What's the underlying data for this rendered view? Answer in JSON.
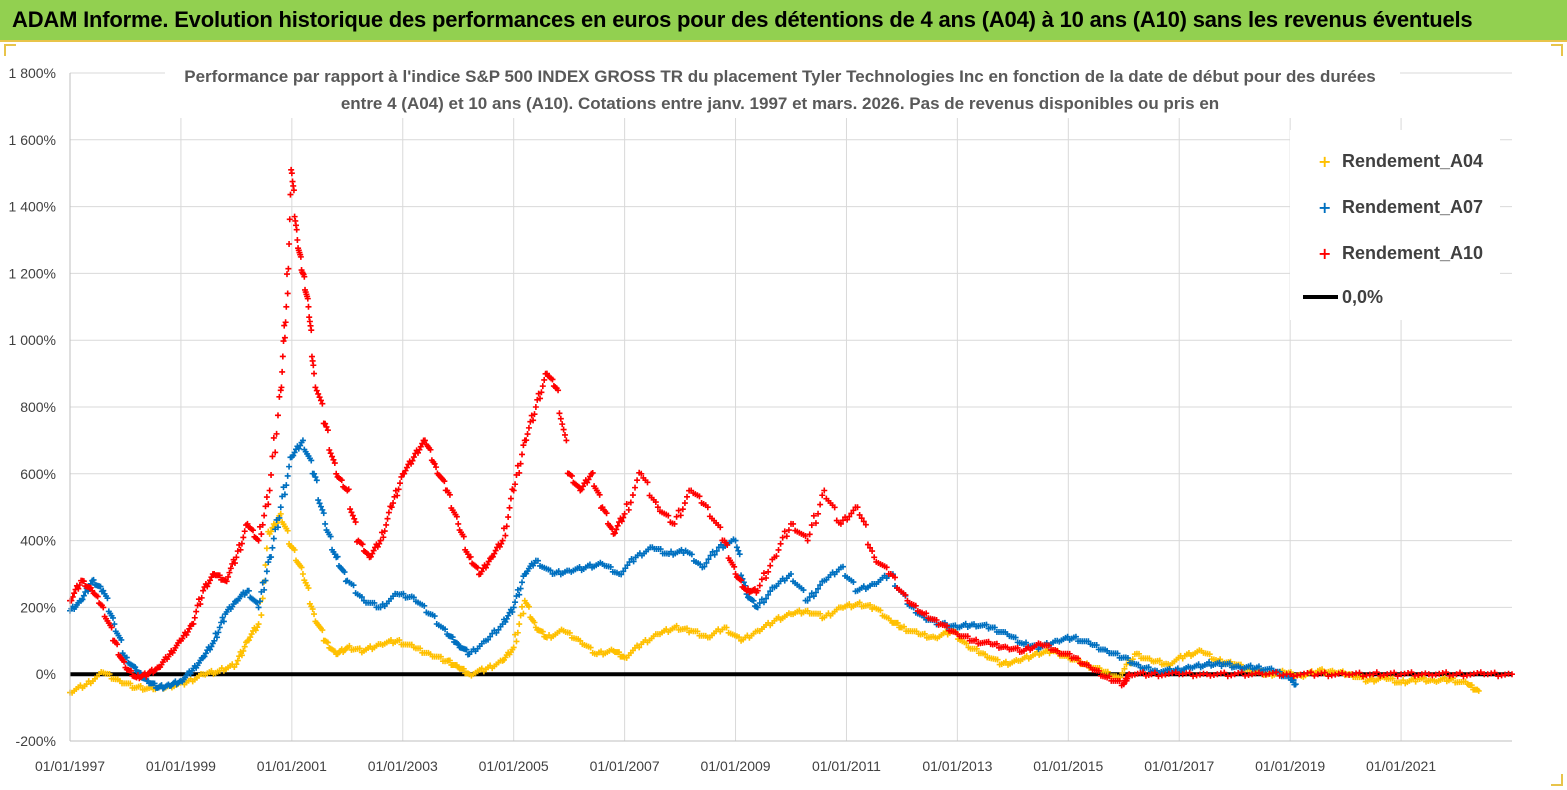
{
  "banner": {
    "title": "ADAM Informe. Evolution historique des performances en euros pour des détentions de 4 ans (A04) à 10 ans (A10) sans les revenus éventuels"
  },
  "chart_data": {
    "type": "scatter",
    "title_line1": "Performance par rapport à l'indice S&P 500 INDEX GROSS TR  du placement Tyler Technologies Inc en fonction de la date de début pour des durées",
    "title_line2": "entre 4 (A04) et 10 ans (A10).  Cotations entre janv. 1997 et mars. 2026.  Pas de  revenus disponibles ou pris en",
    "xlabel": "",
    "ylabel": "",
    "ylim": [
      -200,
      1800
    ],
    "y_ticks": [
      -200,
      0,
      200,
      400,
      600,
      800,
      1000,
      1200,
      1400,
      1600,
      1800
    ],
    "y_tick_labels": [
      "-200%",
      "0%",
      "200%",
      "400%",
      "600%",
      "800%",
      "1 000%",
      "1 200%",
      "1 400%",
      "1 600%",
      "1 800%"
    ],
    "xlim": [
      1997.0,
      2023.0
    ],
    "x_ticks": [
      1997,
      1999,
      2001,
      2003,
      2005,
      2007,
      2009,
      2011,
      2013,
      2015,
      2017,
      2019,
      2021
    ],
    "x_tick_labels": [
      "01/01/1997",
      "01/01/1999",
      "01/01/2001",
      "01/01/2003",
      "01/01/2005",
      "01/01/2007",
      "01/01/2009",
      "01/01/2011",
      "01/01/2013",
      "01/01/2015",
      "01/01/2017",
      "01/01/2019",
      "01/01/2021"
    ],
    "grid": true,
    "legend_position": "top-right",
    "reference_line": {
      "name": "0,0%",
      "value": 0,
      "color": "#000000"
    },
    "series": [
      {
        "name": "Rendement_A04",
        "color": "#ffc000",
        "x": [
          1997.0,
          1997.3,
          1997.6,
          1997.9,
          1998.2,
          1998.5,
          1998.8,
          1999.1,
          1999.4,
          1999.7,
          2000.0,
          2000.2,
          2000.4,
          2000.6,
          2000.8,
          2001.0,
          2001.2,
          2001.4,
          2001.6,
          2001.8,
          2002.0,
          2002.3,
          2002.6,
          2002.9,
          2003.2,
          2003.5,
          2003.8,
          2004.0,
          2004.2,
          2004.5,
          2004.8,
          2005.0,
          2005.2,
          2005.4,
          2005.6,
          2005.9,
          2006.2,
          2006.5,
          2006.8,
          2007.0,
          2007.3,
          2007.6,
          2007.9,
          2008.2,
          2008.5,
          2008.8,
          2009.1,
          2009.4,
          2009.7,
          2010.0,
          2010.3,
          2010.6,
          2010.9,
          2011.2,
          2011.5,
          2011.8,
          2012.0,
          2012.3,
          2012.6,
          2012.9,
          2013.2,
          2013.5,
          2013.8,
          2014.1,
          2014.4,
          2014.7,
          2015.0,
          2015.3,
          2015.6,
          2015.9,
          2016.2,
          2016.5,
          2016.8,
          2017.1,
          2017.4,
          2017.7,
          2018.0,
          2018.3,
          2018.6,
          2018.9,
          2019.2,
          2019.5,
          2019.8,
          2020.1,
          2020.4,
          2020.7,
          2021.0,
          2021.3,
          2021.6,
          2021.9,
          2022.2,
          2022.4
        ],
        "y": [
          -55,
          -30,
          5,
          -20,
          -40,
          -45,
          -35,
          -25,
          0,
          10,
          30,
          100,
          150,
          420,
          480,
          380,
          300,
          180,
          100,
          60,
          80,
          70,
          90,
          100,
          80,
          60,
          40,
          20,
          0,
          15,
          40,
          80,
          220,
          140,
          110,
          130,
          100,
          60,
          70,
          50,
          90,
          120,
          140,
          130,
          110,
          140,
          100,
          130,
          160,
          180,
          190,
          170,
          200,
          210,
          200,
          160,
          140,
          120,
          110,
          130,
          80,
          60,
          30,
          40,
          60,
          70,
          50,
          30,
          10,
          -10,
          60,
          40,
          30,
          55,
          70,
          40,
          30,
          10,
          0,
          5,
          -5,
          10,
          5,
          0,
          -20,
          -10,
          -25,
          -15,
          -20,
          -15,
          -30,
          -50
        ]
      },
      {
        "name": "Rendement_A07",
        "color": "#0070c0",
        "x": [
          1997.0,
          1997.2,
          1997.4,
          1997.6,
          1997.8,
          1998.0,
          1998.2,
          1998.4,
          1998.6,
          1998.8,
          1999.0,
          1999.2,
          1999.4,
          1999.6,
          1999.8,
          2000.0,
          2000.2,
          2000.4,
          2000.6,
          2000.8,
          2001.0,
          2001.2,
          2001.4,
          2001.6,
          2001.8,
          2002.0,
          2002.3,
          2002.6,
          2002.9,
          2003.2,
          2003.5,
          2003.8,
          2004.0,
          2004.2,
          2004.5,
          2004.8,
          2005.0,
          2005.2,
          2005.4,
          2005.7,
          2006.0,
          2006.3,
          2006.6,
          2006.9,
          2007.2,
          2007.5,
          2007.8,
          2008.1,
          2008.4,
          2008.7,
          2009.0,
          2009.2,
          2009.4,
          2009.7,
          2010.0,
          2010.3,
          2010.6,
          2010.9,
          2011.2,
          2011.5,
          2011.8,
          2012.1,
          2012.4,
          2012.7,
          2013.0,
          2013.3,
          2013.6,
          2013.9,
          2014.2,
          2014.5,
          2014.8,
          2015.1,
          2015.4,
          2015.7,
          2016.0,
          2016.3,
          2016.6,
          2016.9,
          2017.2,
          2017.5,
          2017.8,
          2018.1,
          2018.4,
          2018.7,
          2019.0,
          2019.1
        ],
        "y": [
          190,
          220,
          280,
          250,
          150,
          50,
          10,
          -20,
          -40,
          -35,
          -20,
          10,
          50,
          100,
          180,
          220,
          250,
          200,
          350,
          500,
          650,
          700,
          600,
          450,
          350,
          280,
          220,
          200,
          240,
          230,
          180,
          120,
          90,
          60,
          100,
          150,
          200,
          300,
          340,
          300,
          310,
          320,
          330,
          300,
          350,
          380,
          360,
          370,
          320,
          380,
          400,
          240,
          200,
          260,
          300,
          220,
          280,
          320,
          250,
          270,
          300,
          210,
          170,
          150,
          140,
          150,
          140,
          120,
          90,
          80,
          100,
          110,
          90,
          70,
          50,
          20,
          10,
          10,
          20,
          30,
          30,
          20,
          20,
          10,
          -10,
          -30
        ]
      },
      {
        "name": "Rendement_A10",
        "color": "#ff0000",
        "x": [
          1997.0,
          1997.2,
          1997.4,
          1997.6,
          1997.8,
          1998.0,
          1998.2,
          1998.4,
          1998.6,
          1998.8,
          1999.0,
          1999.2,
          1999.4,
          1999.6,
          1999.8,
          2000.0,
          2000.2,
          2000.4,
          2000.6,
          2000.8,
          2000.9,
          2001.0,
          2001.1,
          2001.2,
          2001.3,
          2001.4,
          2001.6,
          2001.8,
          2002.0,
          2002.2,
          2002.4,
          2002.6,
          2002.8,
          2003.0,
          2003.2,
          2003.4,
          2003.6,
          2003.8,
          2004.0,
          2004.2,
          2004.4,
          2004.6,
          2004.8,
          2005.0,
          2005.2,
          2005.4,
          2005.6,
          2005.8,
          2006.0,
          2006.2,
          2006.4,
          2006.6,
          2006.8,
          2007.0,
          2007.3,
          2007.6,
          2007.9,
          2008.2,
          2008.5,
          2008.8,
          2009.0,
          2009.2,
          2009.4,
          2009.7,
          2010.0,
          2010.3,
          2010.6,
          2010.9,
          2011.2,
          2011.5,
          2011.8,
          2012.1,
          2012.4,
          2012.7,
          2013.0,
          2013.3,
          2013.6,
          2013.9,
          2014.2,
          2014.5,
          2014.8,
          2015.1,
          2015.4,
          2015.7,
          2016.0,
          2016.1,
          2016.5,
          2017.0,
          2017.5,
          2018.0,
          2018.5,
          2019.0,
          2019.5,
          2020.0,
          2020.5,
          2021.0,
          2021.5,
          2022.0,
          2022.5,
          2023.0
        ],
        "y": [
          220,
          280,
          250,
          200,
          100,
          20,
          -10,
          0,
          20,
          60,
          100,
          150,
          250,
          300,
          280,
          350,
          450,
          400,
          550,
          850,
          1100,
          1500,
          1300,
          1200,
          1100,
          900,
          750,
          600,
          550,
          400,
          350,
          400,
          500,
          600,
          650,
          700,
          620,
          550,
          450,
          350,
          300,
          350,
          400,
          550,
          700,
          800,
          900,
          850,
          600,
          550,
          600,
          500,
          420,
          480,
          600,
          500,
          450,
          550,
          500,
          400,
          300,
          250,
          250,
          350,
          450,
          400,
          550,
          450,
          500,
          350,
          300,
          220,
          180,
          150,
          120,
          100,
          90,
          80,
          70,
          90,
          70,
          50,
          20,
          -10,
          -30,
          0,
          0,
          0,
          0,
          0,
          0,
          0,
          0,
          0,
          0,
          0,
          0,
          0,
          0,
          0
        ]
      }
    ]
  }
}
